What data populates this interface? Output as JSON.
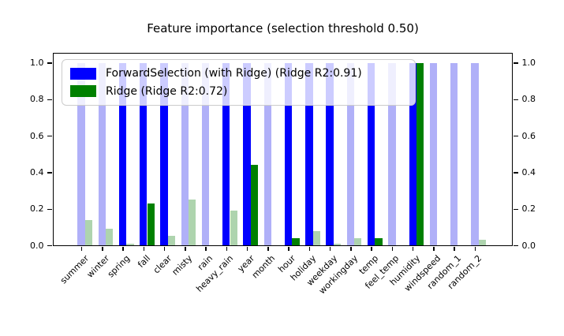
{
  "title": "Feature importance (selection threshold 0.50)",
  "chart_data": {
    "type": "bar",
    "title": "Feature importance (selection threshold 0.50)",
    "selection_threshold": 0.5,
    "categories": [
      "summer",
      "winter",
      "spring",
      "fall",
      "clear",
      "misty",
      "rain",
      "heavy_rain",
      "year",
      "month",
      "hour",
      "holiday",
      "weekday",
      "workingday",
      "temp",
      "feel_temp",
      "humidity",
      "windspeed",
      "random_1",
      "random_2"
    ],
    "series": [
      {
        "id": "forward-selection",
        "name": "ForwardSelection (with Ridge) (Ridge R2:0.91)",
        "color": "#0000ff",
        "faded_color": "#b0b0f8",
        "values": [
          1.0,
          1.0,
          1.0,
          1.0,
          1.0,
          1.0,
          1.0,
          1.0,
          1.0,
          1.0,
          1.0,
          1.0,
          1.0,
          1.0,
          1.0,
          1.0,
          1.0,
          1.0,
          1.0,
          1.0
        ],
        "solid": [
          false,
          false,
          true,
          true,
          true,
          false,
          false,
          true,
          true,
          false,
          true,
          true,
          true,
          false,
          true,
          false,
          true,
          false,
          false,
          false
        ]
      },
      {
        "id": "ridge",
        "name": "Ridge (Ridge R2:0.72)",
        "color": "#008000",
        "faded_color": "#aed4ae",
        "values": [
          0.14,
          0.09,
          0.01,
          0.23,
          0.05,
          0.25,
          0.0,
          0.19,
          0.44,
          0.0,
          0.04,
          0.08,
          0.01,
          0.04,
          0.04,
          0.0,
          1.0,
          0.0,
          0.0,
          0.03
        ],
        "solid": [
          false,
          false,
          false,
          true,
          false,
          false,
          false,
          false,
          true,
          false,
          true,
          false,
          false,
          false,
          true,
          false,
          true,
          false,
          false,
          false
        ]
      }
    ],
    "y_ticks": [
      0.0,
      0.2,
      0.4,
      0.6,
      0.8,
      1.0
    ],
    "ylim": [
      0,
      1.05
    ],
    "y_axis_sides": [
      "left",
      "right"
    ],
    "grid": false,
    "legend_position": "upper left",
    "faded_meaning": "bar drawn with low alpha (feature not selected)"
  }
}
